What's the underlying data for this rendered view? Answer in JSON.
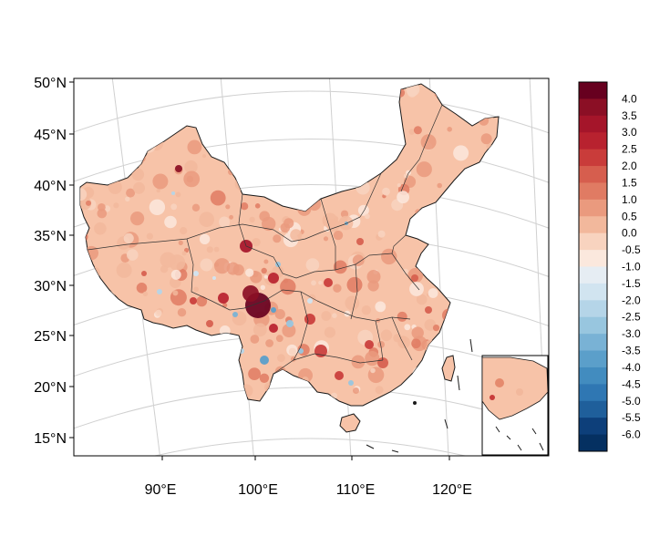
{
  "map": {
    "lat_labels": [
      "50°N",
      "45°N",
      "40°N",
      "35°N",
      "30°N",
      "25°N",
      "20°N",
      "15°N"
    ],
    "lon_labels": [
      "90°E",
      "100°E",
      "110°E",
      "120°E"
    ],
    "projection": "conic",
    "inset": "South China Sea islands",
    "colors": {
      "land_base": "#f7c3a8",
      "ocean": "#ffffff",
      "grid": "#d0d0d0",
      "border": "#1a1a1a"
    }
  },
  "colorbar": {
    "labels": [
      "4.0",
      "3.5",
      "3.0",
      "2.5",
      "2.0",
      "1.5",
      "1.0",
      "0.5",
      "0.0",
      "-0.5",
      "-1.0",
      "-1.5",
      "-2.0",
      "-2.5",
      "-3.0",
      "-3.5",
      "-4.0",
      "-4.5",
      "-5.0",
      "-5.5",
      "-6.0"
    ],
    "colors": [
      "#67001f",
      "#8b0f25",
      "#a5152a",
      "#b8222f",
      "#c93c3a",
      "#d65e4e",
      "#e07b63",
      "#ea9a7e",
      "#f2b89c",
      "#f8d3bf",
      "#fbe8dd",
      "#e6edf3",
      "#d1e4f0",
      "#b5d5e8",
      "#98c6df",
      "#79b2d5",
      "#5b9fca",
      "#428cbf",
      "#2f77b3",
      "#1f5f9b",
      "#0d3f7a",
      "#053061"
    ]
  }
}
